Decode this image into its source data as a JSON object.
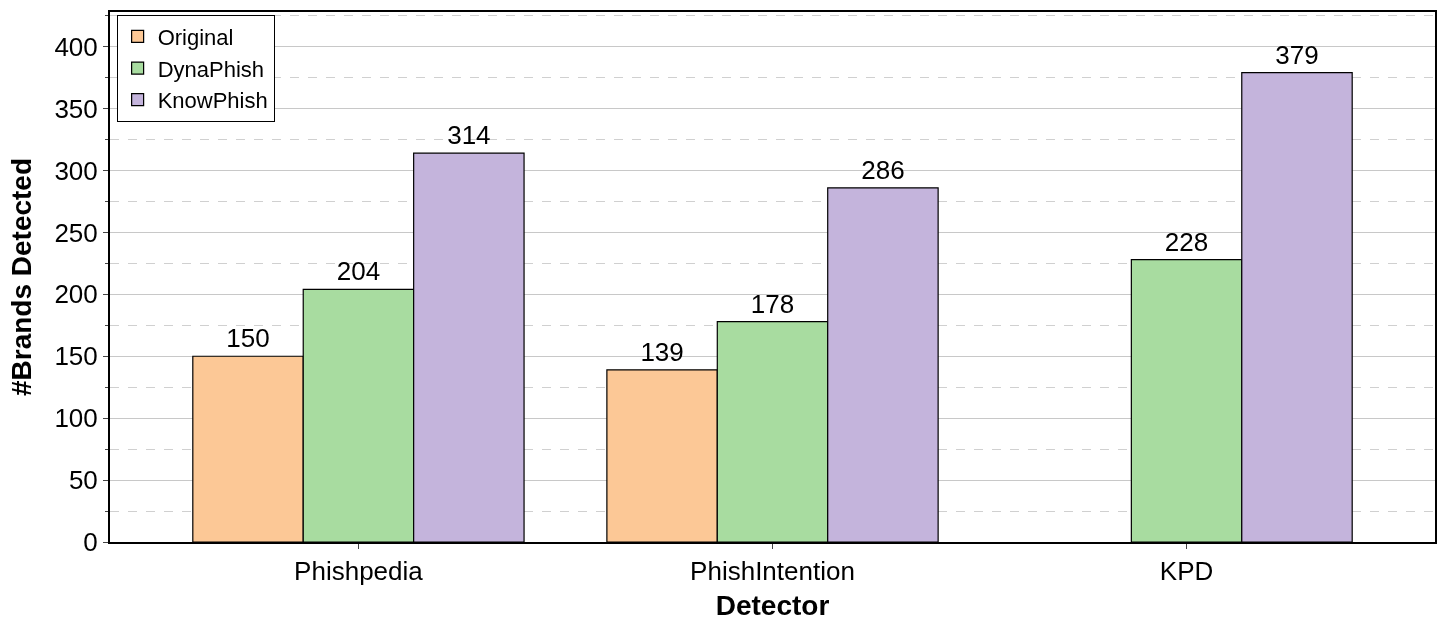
{
  "chart_data": {
    "type": "bar",
    "xlabel": "Detector",
    "ylabel": "#Brands Detected",
    "categories": [
      "Phishpedia",
      "PhishIntention",
      "KPD"
    ],
    "series": [
      {
        "name": "Original",
        "color": "#fcc896",
        "values": [
          150,
          139,
          null
        ]
      },
      {
        "name": "DynaPhish",
        "color": "#a8dca0",
        "values": [
          204,
          178,
          228
        ]
      },
      {
        "name": "KnowPhish",
        "color": "#c4b4dc",
        "values": [
          314,
          286,
          379
        ]
      }
    ],
    "ylim": [
      0,
      428
    ],
    "yticks": [
      0,
      50,
      100,
      150,
      200,
      250,
      300,
      350,
      400
    ],
    "grid": "y",
    "legend": "top left",
    "data_labels": true
  }
}
